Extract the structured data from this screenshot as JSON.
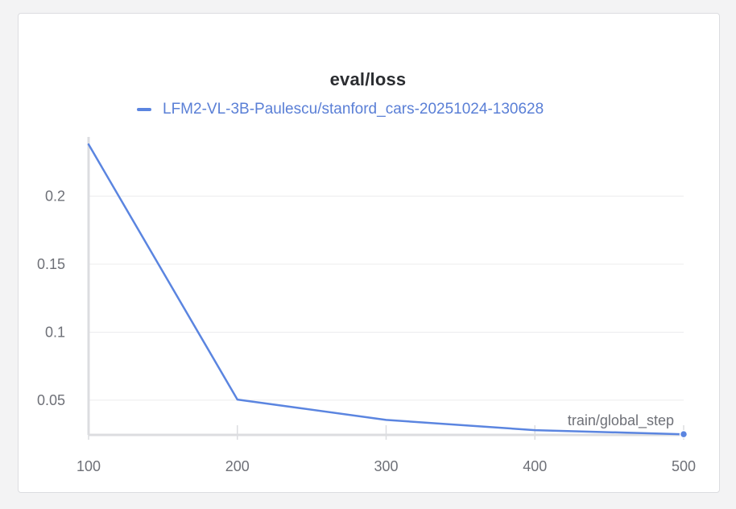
{
  "panel": {
    "title": "eval/loss"
  },
  "colors": {
    "series": "#5b85e0",
    "grid": "#ececee",
    "axis": "#dcdde0",
    "text": "#6e7077"
  },
  "chart_data": {
    "type": "line",
    "title": "eval/loss",
    "xlabel": "train/global_step",
    "ylabel": "",
    "x": [
      100,
      200,
      300,
      400,
      500
    ],
    "series": [
      {
        "name": "LFM2-VL-3B-Paulescu/stanford_cars-20251024-130628",
        "values": [
          0.238,
          0.0505,
          0.0355,
          0.028,
          0.025
        ]
      }
    ],
    "xlim": [
      100,
      500
    ],
    "ylim": [
      0.0245,
      0.2435
    ],
    "xticks": [
      100,
      200,
      300,
      400,
      500
    ],
    "xtick_labels": [
      "100",
      "200",
      "300",
      "400",
      "500"
    ],
    "yticks": [
      0.05,
      0.1,
      0.15,
      0.2
    ],
    "ytick_labels": [
      "0.05",
      "0.1",
      "0.15",
      "0.2"
    ],
    "grid": true,
    "legend_position": "top"
  }
}
